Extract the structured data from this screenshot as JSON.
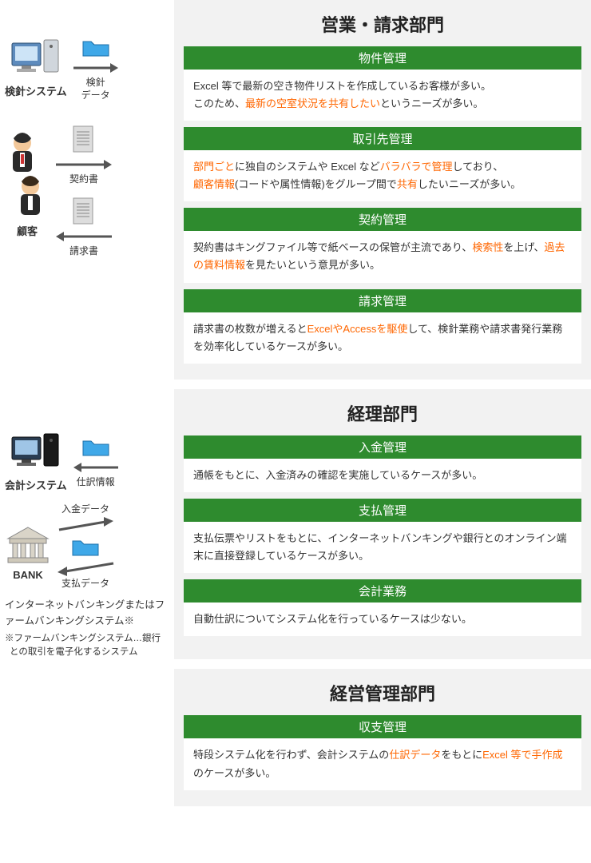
{
  "colors": {
    "headerBg": "#2e8b2e",
    "headerText": "#ffffff",
    "panelBg": "#f2f2f2",
    "cardBg": "#ffffff",
    "highlight": "#ff6600",
    "text": "#333333",
    "arrow": "#555555",
    "folderFill": "#3fa8e8",
    "docFill": "#cccccc",
    "computerBody": "#3b6fa8",
    "computerDark": "#2a2a2a"
  },
  "dept1": {
    "title": "営業・請求部門",
    "left": {
      "system": "検針システム",
      "meterData": "検針\nデータ",
      "contractDoc": "契約書",
      "invoiceDoc": "請求書",
      "customer": "顧客"
    },
    "cards": [
      {
        "name": "property-mgmt",
        "head": "物件管理",
        "body_pre": "Excel 等で最新の空き物件リストを作成しているお客様が多い。\nこのため、",
        "body_hl1": "最新の空室状況を共有したい",
        "body_post": "というニーズが多い。"
      },
      {
        "name": "client-mgmt",
        "head": "取引先管理",
        "seg": [
          {
            "t": "部門ごと",
            "hl": true
          },
          {
            "t": "に独自のシステムや Excel など",
            "hl": false
          },
          {
            "t": "バラバラで管理",
            "hl": true
          },
          {
            "t": "しており、\n",
            "hl": false
          },
          {
            "t": "顧客情報",
            "hl": true
          },
          {
            "t": "(コードや属性情報)をグループ間で",
            "hl": false
          },
          {
            "t": "共有",
            "hl": true
          },
          {
            "t": "したいニーズが多い。",
            "hl": false
          }
        ]
      },
      {
        "name": "contract-mgmt",
        "head": "契約管理",
        "seg": [
          {
            "t": "契約書はキングファイル等で紙ベースの保管が主流であり、",
            "hl": false
          },
          {
            "t": "検索性",
            "hl": true
          },
          {
            "t": "を上げ、",
            "hl": false
          },
          {
            "t": "過去の賃料情報",
            "hl": true
          },
          {
            "t": "を見たいという意見が多い。",
            "hl": false
          }
        ]
      },
      {
        "name": "billing-mgmt",
        "head": "請求管理",
        "seg": [
          {
            "t": "請求書の枚数が増えると",
            "hl": false
          },
          {
            "t": "ExcelやAccessを駆使",
            "hl": true
          },
          {
            "t": "して、検針業務や請求書発行業務を効率化しているケースが多い。",
            "hl": false
          }
        ]
      }
    ]
  },
  "dept2": {
    "title": "経理部門",
    "left": {
      "system": "会計システム",
      "journalInfo": "仕訳情報",
      "depositData": "入金データ",
      "paymentData": "支払データ",
      "bank": "BANK",
      "note": "インターネットバンキングまたはファームバンキングシステム※",
      "noteSub": "※ファームバンキングシステム…銀行との取引を電子化するシステム"
    },
    "cards": [
      {
        "name": "deposit-mgmt",
        "head": "入金管理",
        "seg": [
          {
            "t": "通帳をもとに、入金済みの確認を実施しているケースが多い。",
            "hl": false
          }
        ]
      },
      {
        "name": "payment-mgmt",
        "head": "支払管理",
        "seg": [
          {
            "t": "支払伝票やリストをもとに、インターネットバンキングや銀行とのオンライン端末に直接登録しているケースが多い。",
            "hl": false
          }
        ]
      },
      {
        "name": "accounting-ops",
        "head": "会計業務",
        "seg": [
          {
            "t": "自動仕訳についてシステム化を行っているケースは少ない。",
            "hl": false
          }
        ]
      }
    ]
  },
  "dept3": {
    "title": "経営管理部門",
    "cards": [
      {
        "name": "pl-mgmt",
        "head": "収支管理",
        "seg": [
          {
            "t": "特段システム化を行わず、会計システムの",
            "hl": false
          },
          {
            "t": "仕訳データ",
            "hl": true
          },
          {
            "t": "をもとに",
            "hl": false
          },
          {
            "t": "Excel 等で手作成",
            "hl": true
          },
          {
            "t": "のケースが多い。",
            "hl": false
          }
        ]
      }
    ]
  }
}
